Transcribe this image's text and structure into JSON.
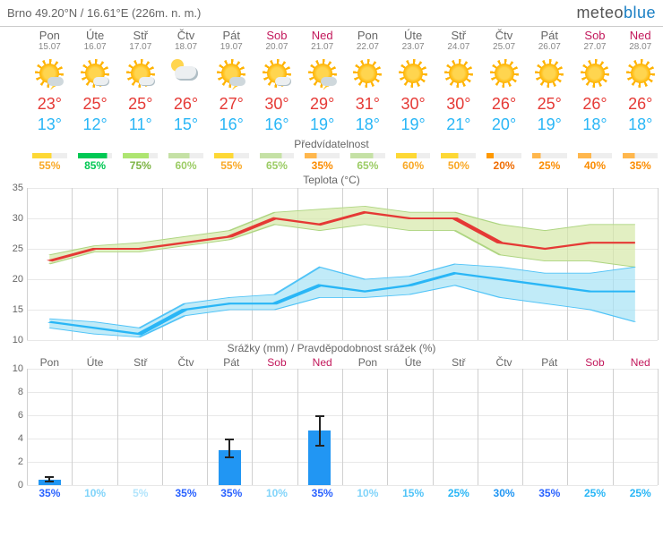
{
  "location": "Brno  49.20°N / 16.61°E (226m. n. m.)",
  "logo": {
    "m": "meteo",
    "b": "blue"
  },
  "sections": {
    "pred": "Předvídatelnost",
    "temp": "Teplota (°C)",
    "precip": "Srážky (mm) / Pravděpodobnost srážek (%)"
  },
  "days": [
    {
      "name": "Pon",
      "date": "15.07",
      "we": false,
      "icon": "storm",
      "hi": "23°",
      "lo": "13°",
      "pred": 55,
      "pcolor": "#fdd835",
      "pvcolor": "#f9a825"
    },
    {
      "name": "Úte",
      "date": "16.07",
      "we": false,
      "icon": "suncloud",
      "hi": "25°",
      "lo": "12°",
      "pred": 85,
      "pcolor": "#00c853",
      "pvcolor": "#00c853"
    },
    {
      "name": "Stř",
      "date": "17.07",
      "we": false,
      "icon": "suncloud",
      "hi": "25°",
      "lo": "11°",
      "pred": 75,
      "pcolor": "#aee571",
      "pvcolor": "#7cb342"
    },
    {
      "name": "Čtv",
      "date": "18.07",
      "we": false,
      "icon": "cloud",
      "hi": "26°",
      "lo": "15°",
      "pred": 60,
      "pcolor": "#c5e1a5",
      "pvcolor": "#9ccc65"
    },
    {
      "name": "Pát",
      "date": "19.07",
      "we": false,
      "icon": "storm",
      "hi": "27°",
      "lo": "16°",
      "pred": 55,
      "pcolor": "#fdd835",
      "pvcolor": "#f9a825"
    },
    {
      "name": "Sob",
      "date": "20.07",
      "we": true,
      "icon": "suncloud",
      "hi": "30°",
      "lo": "16°",
      "pred": 65,
      "pcolor": "#c5e1a5",
      "pvcolor": "#9ccc65"
    },
    {
      "name": "Ned",
      "date": "21.07",
      "we": true,
      "icon": "storm",
      "hi": "29°",
      "lo": "19°",
      "pred": 35,
      "pcolor": "#ffb74d",
      "pvcolor": "#fb8c00"
    },
    {
      "name": "Pon",
      "date": "22.07",
      "we": false,
      "icon": "sun",
      "hi": "31°",
      "lo": "18°",
      "pred": 65,
      "pcolor": "#c5e1a5",
      "pvcolor": "#9ccc65"
    },
    {
      "name": "Úte",
      "date": "23.07",
      "we": false,
      "icon": "sun",
      "hi": "30°",
      "lo": "19°",
      "pred": 60,
      "pcolor": "#fdd835",
      "pvcolor": "#f9a825"
    },
    {
      "name": "Stř",
      "date": "24.07",
      "we": false,
      "icon": "sun",
      "hi": "30°",
      "lo": "21°",
      "pred": 50,
      "pcolor": "#fdd835",
      "pvcolor": "#f9a825"
    },
    {
      "name": "Čtv",
      "date": "25.07",
      "we": false,
      "icon": "sun",
      "hi": "26°",
      "lo": "20°",
      "pred": 20,
      "pcolor": "#ff9800",
      "pvcolor": "#ef6c00"
    },
    {
      "name": "Pát",
      "date": "26.07",
      "we": false,
      "icon": "sun",
      "hi": "25°",
      "lo": "19°",
      "pred": 25,
      "pcolor": "#ffb74d",
      "pvcolor": "#fb8c00"
    },
    {
      "name": "Sob",
      "date": "27.07",
      "we": true,
      "icon": "sun",
      "hi": "26°",
      "lo": "18°",
      "pred": 40,
      "pcolor": "#ffb74d",
      "pvcolor": "#fb8c00"
    },
    {
      "name": "Ned",
      "date": "28.07",
      "we": true,
      "icon": "sun",
      "hi": "26°",
      "lo": "18°",
      "pred": 35,
      "pcolor": "#ffb74d",
      "pvcolor": "#fb8c00"
    }
  ],
  "tempChart": {
    "ymin": 10,
    "ymax": 35,
    "ystep": 5,
    "hi": [
      23,
      25,
      25,
      26,
      27,
      30,
      29,
      31,
      30,
      30,
      26,
      25,
      26,
      26
    ],
    "lo": [
      13,
      12,
      11,
      15,
      16,
      16,
      19,
      18,
      19,
      21,
      20,
      19,
      18,
      18
    ],
    "hiBandUp": [
      24,
      25.5,
      26,
      27,
      28,
      31,
      31.5,
      32,
      31,
      31,
      29,
      28,
      29,
      29
    ],
    "hiBandDn": [
      22.5,
      24.5,
      24.5,
      25.5,
      26.5,
      29,
      28,
      29,
      28,
      28,
      24,
      23,
      23,
      22
    ],
    "loBandUp": [
      13.5,
      13,
      12,
      16,
      17,
      17.5,
      22,
      20,
      20.5,
      22.5,
      22,
      21,
      21,
      22
    ],
    "loBandDn": [
      12,
      11,
      10.5,
      14,
      15,
      15,
      17,
      17,
      17.5,
      19,
      17,
      16,
      15,
      13
    ],
    "colors": {
      "hi": "#e53935",
      "lo": "#29b6f6",
      "hiband": "#d6e8a8",
      "loband": "#a6e3f5",
      "hibandStroke": "#aed581",
      "lobandStroke": "#4fc3f7"
    }
  },
  "precipChart": {
    "ymin": 0,
    "ymax": 10,
    "ystep": 2,
    "bars": [
      0.5,
      0,
      0,
      0,
      3,
      0,
      4.7,
      0,
      0,
      0,
      0,
      0,
      0,
      0
    ],
    "err": [
      [
        0.2,
        0.8
      ],
      null,
      null,
      null,
      [
        2.3,
        4.0
      ],
      null,
      [
        3.3,
        6.0
      ],
      null,
      null,
      null,
      null,
      null,
      null,
      null
    ],
    "prob": [
      35,
      10,
      5,
      35,
      35,
      10,
      35,
      10,
      15,
      25,
      30,
      35,
      25,
      25
    ],
    "probColors": [
      "#2962ff",
      "#81d4fa",
      "#b3e5fc",
      "#2962ff",
      "#2962ff",
      "#81d4fa",
      "#2962ff",
      "#81d4fa",
      "#4fc3f7",
      "#29b6f6",
      "#2196f3",
      "#2962ff",
      "#29b6f6",
      "#29b6f6"
    ],
    "barColor": "#2196f3"
  }
}
